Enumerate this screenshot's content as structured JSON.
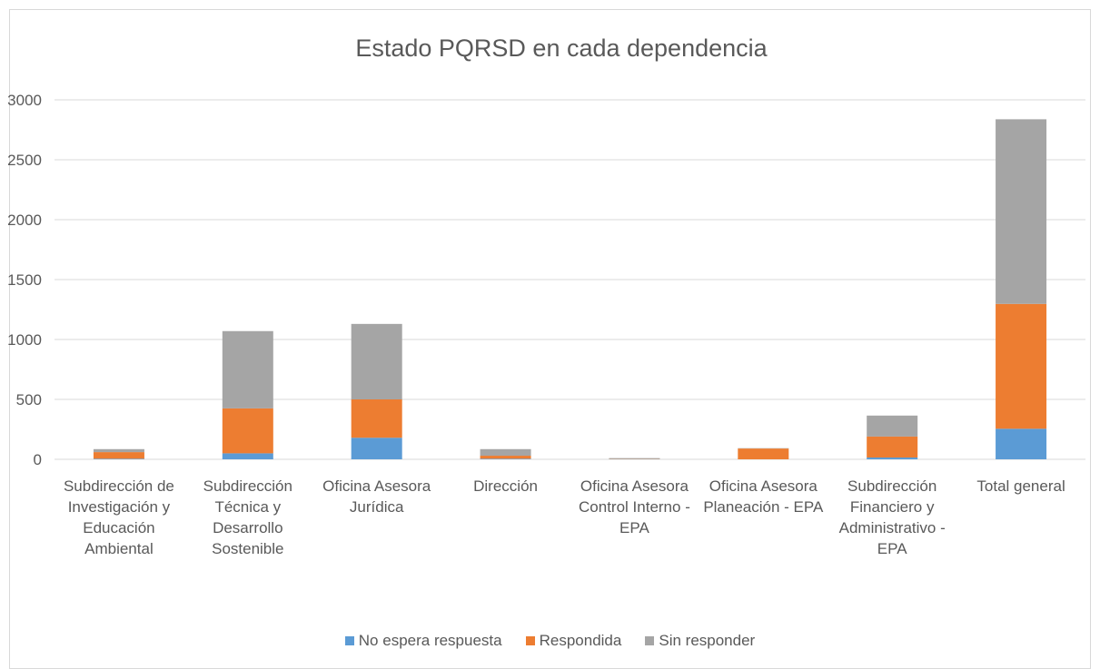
{
  "chart_data": {
    "type": "stacked-bar",
    "title": "Estado PQRSD en cada dependencia",
    "categories": [
      "Subdirección de Investigación y Educación Ambiental",
      "Subdirección Técnica y Desarrollo Sostenible",
      "Oficina Asesora Jurídica",
      "Dirección",
      "Oficina Asesora Control Interno - EPA",
      "Oficina Asesora Planeación - EPA",
      "Subdirección Financiero y Administrativo - EPA",
      "Total general"
    ],
    "series": [
      {
        "name": "No espera respuesta",
        "color": "#5b9bd5",
        "values": [
          5,
          50,
          180,
          5,
          0,
          0,
          15,
          255
        ]
      },
      {
        "name": "Respondida",
        "color": "#ed7d31",
        "values": [
          55,
          375,
          320,
          25,
          2,
          90,
          175,
          1042
        ]
      },
      {
        "name": "Sin responder",
        "color": "#a5a5a5",
        "values": [
          25,
          645,
          630,
          55,
          8,
          3,
          175,
          1541
        ]
      }
    ],
    "ylim": [
      0,
      3000
    ],
    "yticks": [
      0,
      500,
      1000,
      1500,
      2000,
      2500,
      3000
    ],
    "grid": true
  }
}
